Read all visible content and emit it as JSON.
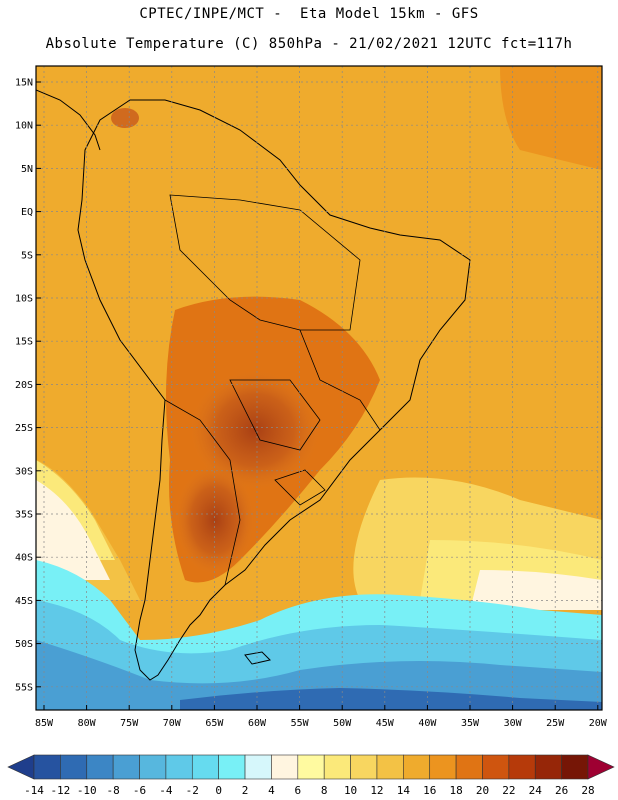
{
  "header": {
    "line1": "CPTEC/INPE/MCT -  Eta Model 15km - GFS",
    "line2": "Absolute Temperature (C) 850hPa - 21/02/2021 12UTC fct=117h"
  },
  "map": {
    "lat_labels": [
      "15N",
      "10N",
      "5N",
      "EQ",
      "5S",
      "10S",
      "15S",
      "20S",
      "25S",
      "30S",
      "35S",
      "40S",
      "45S",
      "50S",
      "55S"
    ],
    "lon_labels": [
      "85W",
      "80W",
      "75W",
      "70W",
      "65W",
      "60W",
      "55W",
      "50W",
      "45W",
      "40W",
      "35W",
      "30W",
      "25W",
      "20W"
    ]
  },
  "legend": {
    "labels": [
      "-14",
      "-12",
      "-10",
      "-8",
      "-6",
      "-4",
      "-2",
      "0",
      "2",
      "4",
      "6",
      "8",
      "10",
      "12",
      "14",
      "16",
      "18",
      "20",
      "22",
      "24",
      "26",
      "28"
    ],
    "colors": [
      "#1f3e8c",
      "#2653a0",
      "#2f6bb3",
      "#3c86c5",
      "#4a9fd3",
      "#57b7de",
      "#5fc9e8",
      "#66dbef",
      "#78f0f6",
      "#d6f7fb",
      "#fff5e0",
      "#fffaa0",
      "#fbe97a",
      "#f8d660",
      "#f3c245",
      "#efab2d",
      "#ec941f",
      "#e07414",
      "#cf550f",
      "#b63a0a",
      "#962608",
      "#761606",
      "#9e0032"
    ]
  }
}
